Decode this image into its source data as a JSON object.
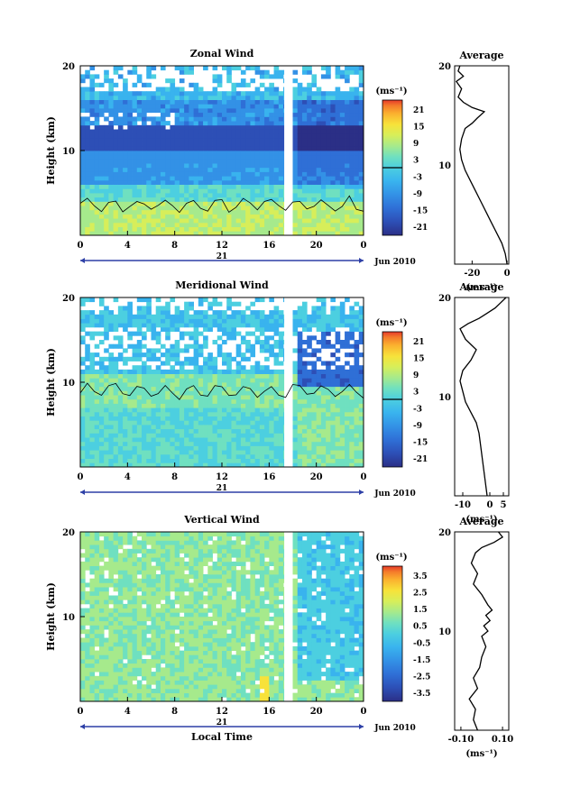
{
  "colors": {
    "axis": "#000000",
    "scale": [
      "#2b2f86",
      "#2d4fb6",
      "#2f6fd6",
      "#3391e6",
      "#39b3ee",
      "#4ccfe0",
      "#6fe0c0",
      "#a6ea8c",
      "#d7ee5a",
      "#f7e23a",
      "#fbb12e",
      "#f47a2a",
      "#e6392a"
    ],
    "gap": "#ffffff",
    "contour": "#000000"
  },
  "x_axis": {
    "ticks": [
      "0",
      "4",
      "8",
      "12",
      "16",
      "20",
      "0"
    ],
    "day_label": "21",
    "month_label": "Jun 2010",
    "title": "Local Time"
  },
  "panels": [
    {
      "title": "Zonal Wind",
      "ylabel": "Height (km)",
      "yticks": [
        "20",
        "10"
      ],
      "unit": "(ms⁻¹)",
      "colorbar_ticks": [
        "21",
        "15",
        "9",
        "3",
        "-3",
        "-9",
        "-15",
        "-21"
      ],
      "colorbar_zero_line": true,
      "avg_title": "Average",
      "avg_yticks": [
        "20",
        "10"
      ],
      "avg_xticks": [
        "-20",
        "0"
      ],
      "avg_unit": "(ms⁻¹)"
    },
    {
      "title": "Meridional Wind",
      "ylabel": "Height (km)",
      "yticks": [
        "20",
        "10"
      ],
      "unit": "(ms⁻¹)",
      "colorbar_ticks": [
        "21",
        "15",
        "9",
        "3",
        "-3",
        "-9",
        "-15",
        "-21"
      ],
      "colorbar_zero_line": true,
      "avg_title": "Average",
      "avg_yticks": [
        "20",
        "10"
      ],
      "avg_xticks": [
        "-10",
        "0",
        "5"
      ],
      "avg_unit": "(ms⁻¹)"
    },
    {
      "title": "Vertical Wind",
      "ylabel": "Height (km)",
      "yticks": [
        "20",
        "10"
      ],
      "unit": "(ms⁻¹)",
      "colorbar_ticks": [
        "3.5",
        "2.5",
        "1.5",
        "0.5",
        "-0.5",
        "-1.5",
        "-2.5",
        "-3.5"
      ],
      "colorbar_zero_line": false,
      "avg_title": "Average",
      "avg_yticks": [
        "20",
        "10"
      ],
      "avg_xticks": [
        "-0.10",
        "0.10"
      ],
      "avg_unit": "(ms⁻¹)"
    }
  ],
  "chart_data": [
    {
      "type": "heatmap",
      "title": "Zonal Wind",
      "ylabel": "Height (km)",
      "xlabel": "",
      "x_range_hours": [
        0,
        24
      ],
      "y_range_km": [
        0,
        20
      ],
      "color_range": [
        -21,
        21
      ],
      "data_gap_hours": [
        17.3,
        17.8
      ]
    },
    {
      "type": "line",
      "title": "Average",
      "xlabel": "(ms⁻¹)",
      "xlim": [
        -30,
        1
      ],
      "ylim": [
        1,
        20
      ],
      "series": [
        {
          "x": [
            0,
            -1,
            -3,
            -6,
            -9,
            -12,
            -15,
            -18,
            -21,
            -24,
            -26,
            -27,
            -26,
            -24,
            -20,
            -17,
            -13,
            -20,
            -25,
            -28,
            -26,
            -29,
            -25,
            -28,
            -27
          ],
          "y": [
            1,
            2,
            3,
            4,
            5,
            6,
            7,
            8,
            9,
            10,
            11,
            12,
            13,
            14,
            14.5,
            15,
            15.6,
            16,
            16.5,
            17,
            17.8,
            18.5,
            19,
            19.5,
            20
          ]
        }
      ]
    },
    {
      "type": "heatmap",
      "title": "Meridional Wind",
      "ylabel": "Height (km)",
      "xlabel": "",
      "x_range_hours": [
        0,
        24
      ],
      "y_range_km": [
        0,
        20
      ],
      "color_range": [
        -21,
        21
      ],
      "data_gap_hours": [
        17.3,
        17.8
      ]
    },
    {
      "type": "line",
      "title": "Average",
      "xlabel": "(ms⁻¹)",
      "xlim": [
        -13,
        7
      ],
      "ylim": [
        1,
        20
      ],
      "series": [
        {
          "x": [
            -1,
            -1.5,
            -2,
            -2.5,
            -3,
            -3.5,
            -4,
            -5,
            -7,
            -9,
            -10,
            -11,
            -10,
            -7,
            -5,
            -7,
            -9,
            -11,
            -8,
            -4,
            -1,
            2,
            4,
            6
          ],
          "y": [
            1,
            2,
            3,
            4,
            5,
            6,
            7,
            8,
            9,
            10,
            11,
            12,
            13,
            14,
            15,
            15.5,
            16,
            17,
            17.5,
            18,
            18.5,
            19,
            19.5,
            20
          ]
        }
      ]
    },
    {
      "type": "heatmap",
      "title": "Vertical Wind",
      "ylabel": "Height (km)",
      "xlabel": "Local Time",
      "x_range_hours": [
        0,
        24
      ],
      "y_range_km": [
        0,
        20
      ],
      "color_range": [
        -3.5,
        3.5
      ],
      "data_gap_hours": [
        17.3,
        17.8
      ]
    },
    {
      "type": "line",
      "title": "Average",
      "xlabel": "(ms⁻¹)",
      "xlim": [
        -0.13,
        0.13
      ],
      "ylim": [
        1,
        20
      ],
      "series": [
        {
          "x": [
            -0.02,
            -0.04,
            -0.03,
            -0.06,
            -0.02,
            -0.04,
            -0.01,
            0.0,
            0.02,
            0.0,
            0.03,
            0.01,
            0.04,
            0.02,
            0.05,
            0.03,
            0.0,
            -0.04,
            -0.02,
            -0.05,
            -0.03,
            0.0,
            0.06,
            0.1,
            0.08
          ],
          "y": [
            1,
            2,
            3,
            4,
            5,
            6,
            7,
            8,
            9,
            10,
            10.5,
            11,
            11.5,
            12,
            12.5,
            13,
            14,
            15,
            16,
            17,
            18,
            18.5,
            19,
            19.5,
            20
          ]
        }
      ]
    }
  ]
}
